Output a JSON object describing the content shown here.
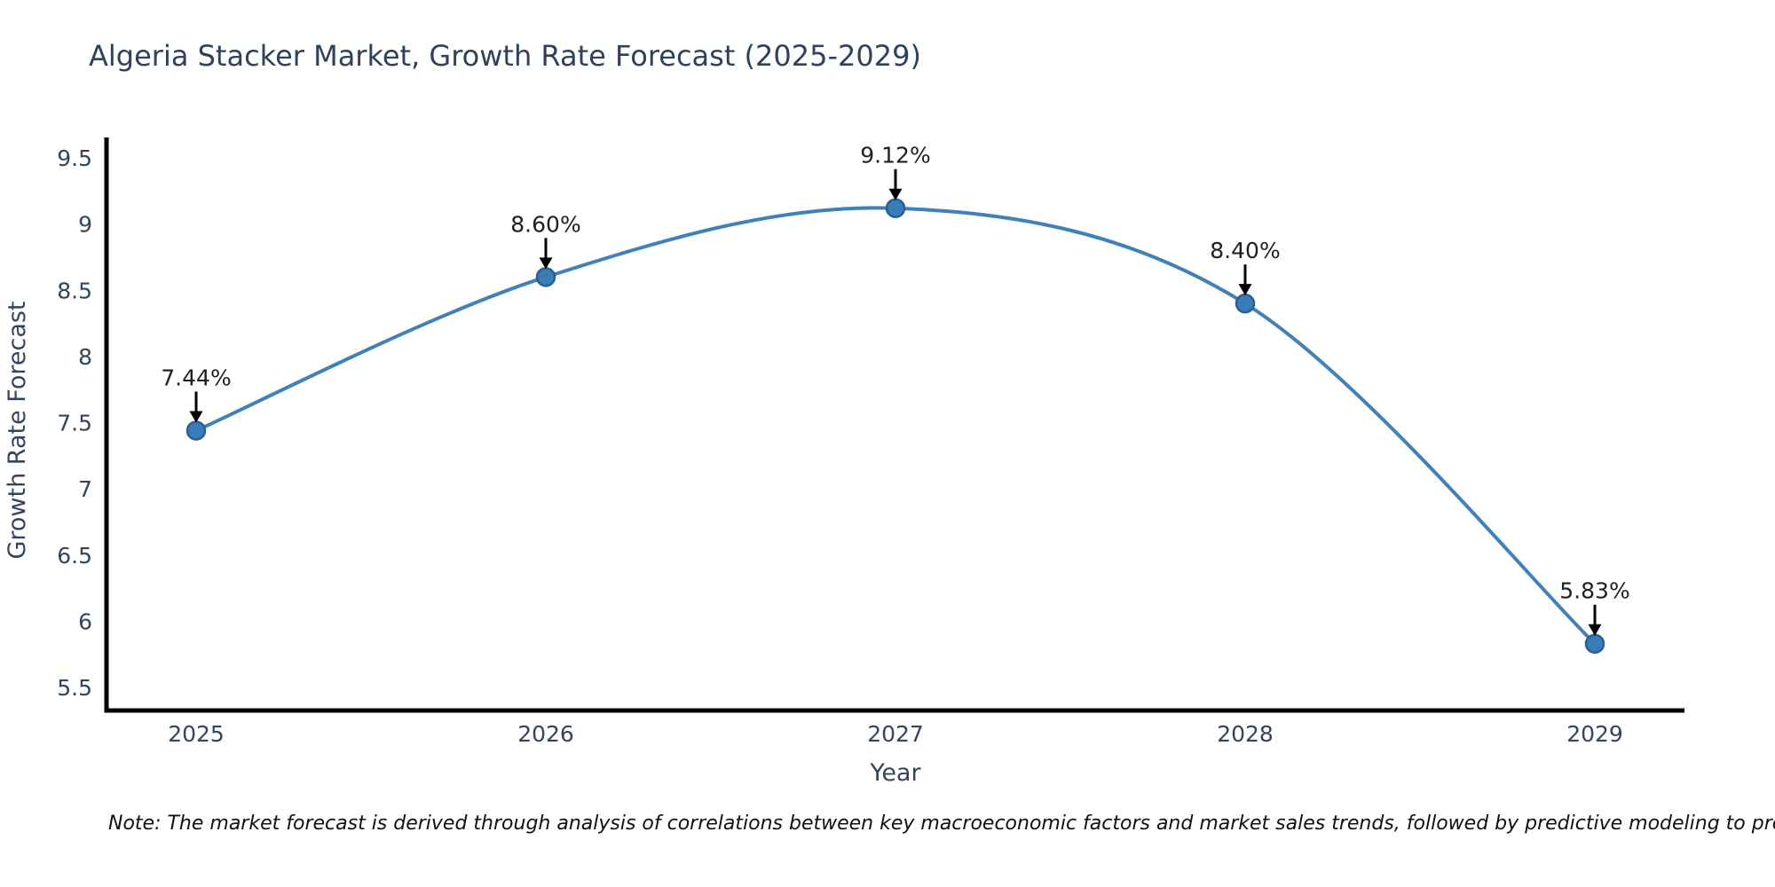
{
  "chart_data": {
    "type": "line",
    "title": "Algeria Stacker Market, Growth Rate Forecast (2025-2029)",
    "xlabel": "Year",
    "ylabel": "Growth Rate Forecast",
    "categories": [
      "2025",
      "2026",
      "2027",
      "2028",
      "2029"
    ],
    "series": [
      {
        "name": "Growth Rate Forecast",
        "values": [
          7.44,
          8.6,
          9.12,
          8.4,
          5.83
        ]
      }
    ],
    "point_labels": [
      "7.44%",
      "8.60%",
      "9.12%",
      "8.40%",
      "5.83%"
    ],
    "ylim": [
      5.5,
      9.5
    ],
    "ytick_labels": [
      "5.5",
      "6",
      "6.5",
      "7",
      "7.5",
      "8",
      "8.5",
      "9",
      "9.5"
    ],
    "grid": false,
    "legend": "none",
    "line_shape": "spline",
    "annotation_arrows": true,
    "colors": {
      "line": "#4181ba",
      "marker_fill": "#3a7cb8",
      "marker_edge": "#2b5f92",
      "spine": "#000000",
      "tick_text": "#33455e",
      "annotation_text": "#1f1f1f",
      "arrow": "#000000"
    }
  },
  "note": "Note: The market forecast is derived through analysis of correlations between key macroeconomic factors and market sales trends, followed by predictive modeling to project future sales trends."
}
